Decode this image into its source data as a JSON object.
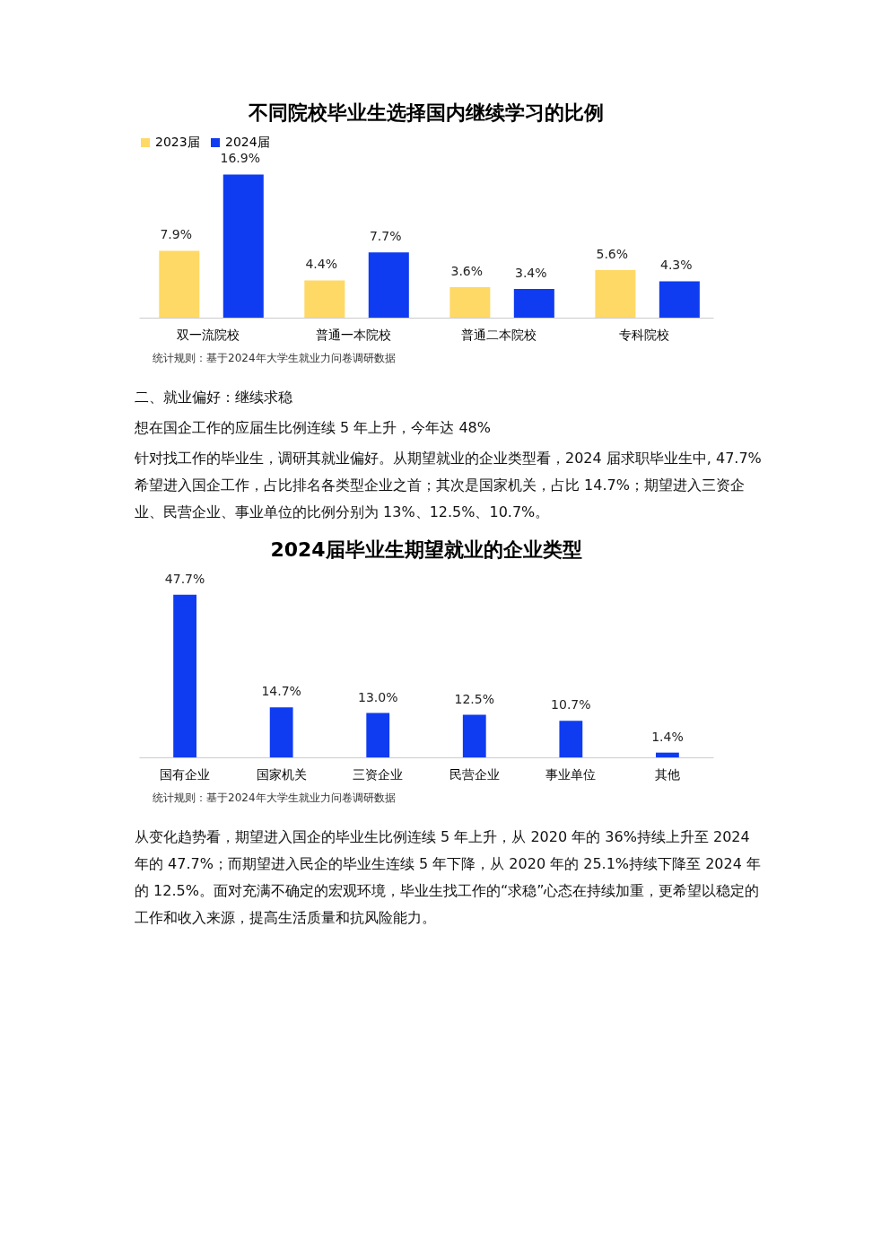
{
  "chart_data": [
    {
      "type": "bar",
      "title": "不同院校毕业生选择国内继续学习的比例",
      "categories": [
        "双一流院校",
        "普通一本院校",
        "普通二本院校",
        "专科院校"
      ],
      "series": [
        {
          "name": "2023届",
          "color": "#ffd966",
          "values": [
            7.9,
            4.4,
            3.6,
            5.6
          ],
          "value_labels": [
            "7.9%",
            "4.4%",
            "3.6%",
            "5.6%"
          ]
        },
        {
          "name": "2024届",
          "color": "#0f3cf0",
          "values": [
            16.9,
            7.7,
            3.4,
            4.3
          ],
          "value_labels": [
            "16.9%",
            "7.7%",
            "3.4%",
            "4.3%"
          ]
        }
      ],
      "legend": "top",
      "annotations": [
        "统计规则：基于2024年大学生就业力问卷调研数据",
        "二、就业偏好：继续求稳",
        "想在国企工作的应届生比例连续 5 年上升，今年达 48%",
        "针对找工作的毕业生，调研其就业偏好。从期望就业的企业类型看，2024 届求职毕业生中, 47.7%希望进入国企工作，占比排名各类型企业之首；其次是国家机关，占比 14.7%；期望进入三资企业、民营企业、事业单位的比例分别为 13%、12.5%、10.7%。"
      ]
    },
    {
      "type": "bar",
      "title": "2024届毕业生期望就业的企业类型",
      "categories": [
        "国有企业",
        "国家机关",
        "三资企业",
        "民营企业",
        "事业单位",
        "其他"
      ],
      "series": [
        {
          "color": "#0f3cf0",
          "values": [
            47.7,
            14.7,
            13.0,
            12.5,
            10.7,
            1.4
          ],
          "value_labels": [
            "47.7%",
            "14.7%",
            "13.0%",
            "12.5%",
            "10.7%",
            "1.4%"
          ]
        }
      ],
      "annotations": [
        "统计规则：基于2024年大学生就业力问卷调研数据",
        "从变化趋势看，期望进入国企的毕业生比例连续 5 年上升，从 2020 年的 36%持续上升至 2024 年的 47.7%；而期望进入民企的毕业生连续 5 年下降，从 2020 年的 25.1%持续下降至 2024 年的 12.5%。面对充满不确定的宏观环境，毕业生找工作的“求稳”心态在持续加重，更希望以稳定的工作和收入来源，提高生活质量和抗风险能力。"
      ]
    }
  ]
}
